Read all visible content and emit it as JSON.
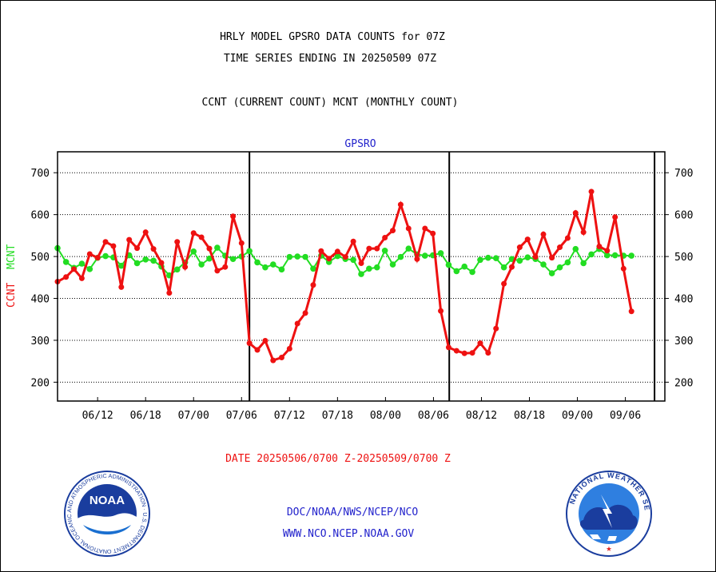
{
  "titles": {
    "line1": "HRLY MODEL GPSRO DATA COUNTS for 07Z",
    "line2": "TIME SERIES ENDING IN 20250509 07Z",
    "line3": "CCNT (CURRENT COUNT) MCNT (MONTHLY COUNT)"
  },
  "footer": {
    "date_range": "DATE 20250506/0700 Z-20250509/0700 Z",
    "org_path": "DOC/NOAA/NWS/NCEP/NCO",
    "website": "WWW.NCO.NCEP.NOAA.GOV"
  },
  "logos": {
    "noaa_text": "NOAA",
    "noaa_ring": "NATIONAL OCEANIC AND ATMOSPHERIC ADMINISTRATION · U.S. DEPARTMENT OF COMMERCE",
    "nws_ring": "NATIONAL WEATHER SERVICE"
  },
  "colors": {
    "ccnt": "#ee1111",
    "mcnt": "#22dd22",
    "plot_label": "#2222cc",
    "footer_text": "#2222cc",
    "date_text": "#ee1111"
  },
  "chart_data": {
    "type": "line",
    "title": "GPSRO",
    "ylabel_parts": [
      {
        "text": "CCNT",
        "color": "#ee1111"
      },
      {
        "text": "MCNT",
        "color": "#22dd22"
      }
    ],
    "ylim": [
      155,
      750
    ],
    "yticks": [
      200,
      300,
      400,
      500,
      600,
      700
    ],
    "grid": true,
    "xlim": [
      0,
      100
    ],
    "xtick_labels": [
      {
        "x": 6.6,
        "label": "06/12"
      },
      {
        "x": 14.5,
        "label": "06/18"
      },
      {
        "x": 22.4,
        "label": "07/00"
      },
      {
        "x": 30.3,
        "label": "07/06"
      },
      {
        "x": 38.2,
        "label": "07/12"
      },
      {
        "x": 46.1,
        "label": "07/18"
      },
      {
        "x": 54.0,
        "label": "08/00"
      },
      {
        "x": 61.9,
        "label": "08/06"
      },
      {
        "x": 69.8,
        "label": "08/12"
      },
      {
        "x": 77.7,
        "label": "08/18"
      },
      {
        "x": 85.6,
        "label": "09/00"
      },
      {
        "x": 93.5,
        "label": "09/06"
      }
    ],
    "day_boundaries": [
      31.6,
      64.5,
      98.3
    ],
    "series": [
      {
        "name": "CCNT",
        "color": "#ee1111",
        "points": [
          [
            0,
            440
          ],
          [
            1.4,
            451
          ],
          [
            2.7,
            470
          ],
          [
            4.0,
            448
          ],
          [
            5.3,
            506
          ],
          [
            6.6,
            497
          ],
          [
            7.9,
            535
          ],
          [
            9.2,
            525
          ],
          [
            10.5,
            427
          ],
          [
            11.8,
            540
          ],
          [
            13.1,
            520
          ],
          [
            14.5,
            558
          ],
          [
            15.8,
            518
          ],
          [
            17.1,
            485
          ],
          [
            18.4,
            413
          ],
          [
            19.7,
            535
          ],
          [
            21.0,
            475
          ],
          [
            22.4,
            556
          ],
          [
            23.7,
            546
          ],
          [
            25.0,
            519
          ],
          [
            26.3,
            466
          ],
          [
            27.6,
            475
          ],
          [
            28.9,
            596
          ],
          [
            30.3,
            532
          ],
          [
            31.6,
            293
          ],
          [
            32.9,
            277
          ],
          [
            34.2,
            299
          ],
          [
            35.5,
            252
          ],
          [
            36.9,
            259
          ],
          [
            38.2,
            280
          ],
          [
            39.5,
            340
          ],
          [
            40.8,
            365
          ],
          [
            42.1,
            432
          ],
          [
            43.4,
            513
          ],
          [
            44.7,
            495
          ],
          [
            46.1,
            512
          ],
          [
            47.4,
            499
          ],
          [
            48.7,
            536
          ],
          [
            50.0,
            484
          ],
          [
            51.3,
            519
          ],
          [
            52.6,
            519
          ],
          [
            53.9,
            545
          ],
          [
            55.2,
            562
          ],
          [
            56.5,
            624
          ],
          [
            57.8,
            567
          ],
          [
            59.2,
            494
          ],
          [
            60.5,
            567
          ],
          [
            61.8,
            555
          ],
          [
            63.1,
            370
          ],
          [
            64.4,
            283
          ],
          [
            65.7,
            275
          ],
          [
            67.0,
            269
          ],
          [
            68.3,
            270
          ],
          [
            69.6,
            293
          ],
          [
            70.9,
            270
          ],
          [
            72.2,
            328
          ],
          [
            73.5,
            435
          ],
          [
            74.8,
            475
          ],
          [
            76.1,
            522
          ],
          [
            77.4,
            541
          ],
          [
            78.7,
            499
          ],
          [
            80.0,
            553
          ],
          [
            81.4,
            497
          ],
          [
            82.7,
            522
          ],
          [
            84.0,
            544
          ],
          [
            85.3,
            604
          ],
          [
            86.6,
            558
          ],
          [
            87.9,
            655
          ],
          [
            89.2,
            524
          ],
          [
            90.5,
            514
          ],
          [
            91.8,
            594
          ],
          [
            93.2,
            471
          ],
          [
            94.5,
            369
          ]
        ]
      },
      {
        "name": "MCNT",
        "color": "#22dd22",
        "points": [
          [
            0,
            520
          ],
          [
            1.4,
            487
          ],
          [
            2.7,
            473
          ],
          [
            4.0,
            483
          ],
          [
            5.3,
            470
          ],
          [
            6.6,
            497
          ],
          [
            7.9,
            501
          ],
          [
            9.2,
            498
          ],
          [
            10.5,
            478
          ],
          [
            11.8,
            503
          ],
          [
            13.1,
            484
          ],
          [
            14.5,
            493
          ],
          [
            15.8,
            490
          ],
          [
            17.1,
            476
          ],
          [
            18.4,
            455
          ],
          [
            19.7,
            469
          ],
          [
            21.0,
            486
          ],
          [
            22.4,
            512
          ],
          [
            23.7,
            481
          ],
          [
            25.0,
            495
          ],
          [
            26.3,
            521
          ],
          [
            27.6,
            502
          ],
          [
            28.9,
            494
          ],
          [
            30.3,
            500
          ],
          [
            31.6,
            513
          ],
          [
            32.9,
            486
          ],
          [
            34.2,
            474
          ],
          [
            35.5,
            481
          ],
          [
            36.9,
            469
          ],
          [
            38.2,
            499
          ],
          [
            39.5,
            500
          ],
          [
            40.8,
            499
          ],
          [
            42.1,
            471
          ],
          [
            43.4,
            502
          ],
          [
            44.7,
            487
          ],
          [
            46.1,
            501
          ],
          [
            47.4,
            494
          ],
          [
            48.7,
            492
          ],
          [
            50.0,
            458
          ],
          [
            51.3,
            471
          ],
          [
            52.6,
            474
          ],
          [
            53.9,
            514
          ],
          [
            55.2,
            481
          ],
          [
            56.5,
            499
          ],
          [
            57.8,
            519
          ],
          [
            59.2,
            505
          ],
          [
            60.5,
            502
          ],
          [
            61.8,
            503
          ],
          [
            63.1,
            508
          ],
          [
            64.4,
            480
          ],
          [
            65.7,
            465
          ],
          [
            67.0,
            476
          ],
          [
            68.3,
            463
          ],
          [
            69.6,
            492
          ],
          [
            70.9,
            497
          ],
          [
            72.2,
            496
          ],
          [
            73.5,
            474
          ],
          [
            74.8,
            494
          ],
          [
            76.1,
            490
          ],
          [
            77.4,
            498
          ],
          [
            78.7,
            494
          ],
          [
            80.0,
            481
          ],
          [
            81.4,
            460
          ],
          [
            82.7,
            474
          ],
          [
            84.0,
            486
          ],
          [
            85.3,
            518
          ],
          [
            86.6,
            484
          ],
          [
            87.9,
            505
          ],
          [
            89.2,
            518
          ],
          [
            90.5,
            503
          ],
          [
            91.8,
            503
          ],
          [
            93.2,
            502
          ],
          [
            94.5,
            502
          ]
        ]
      }
    ]
  }
}
